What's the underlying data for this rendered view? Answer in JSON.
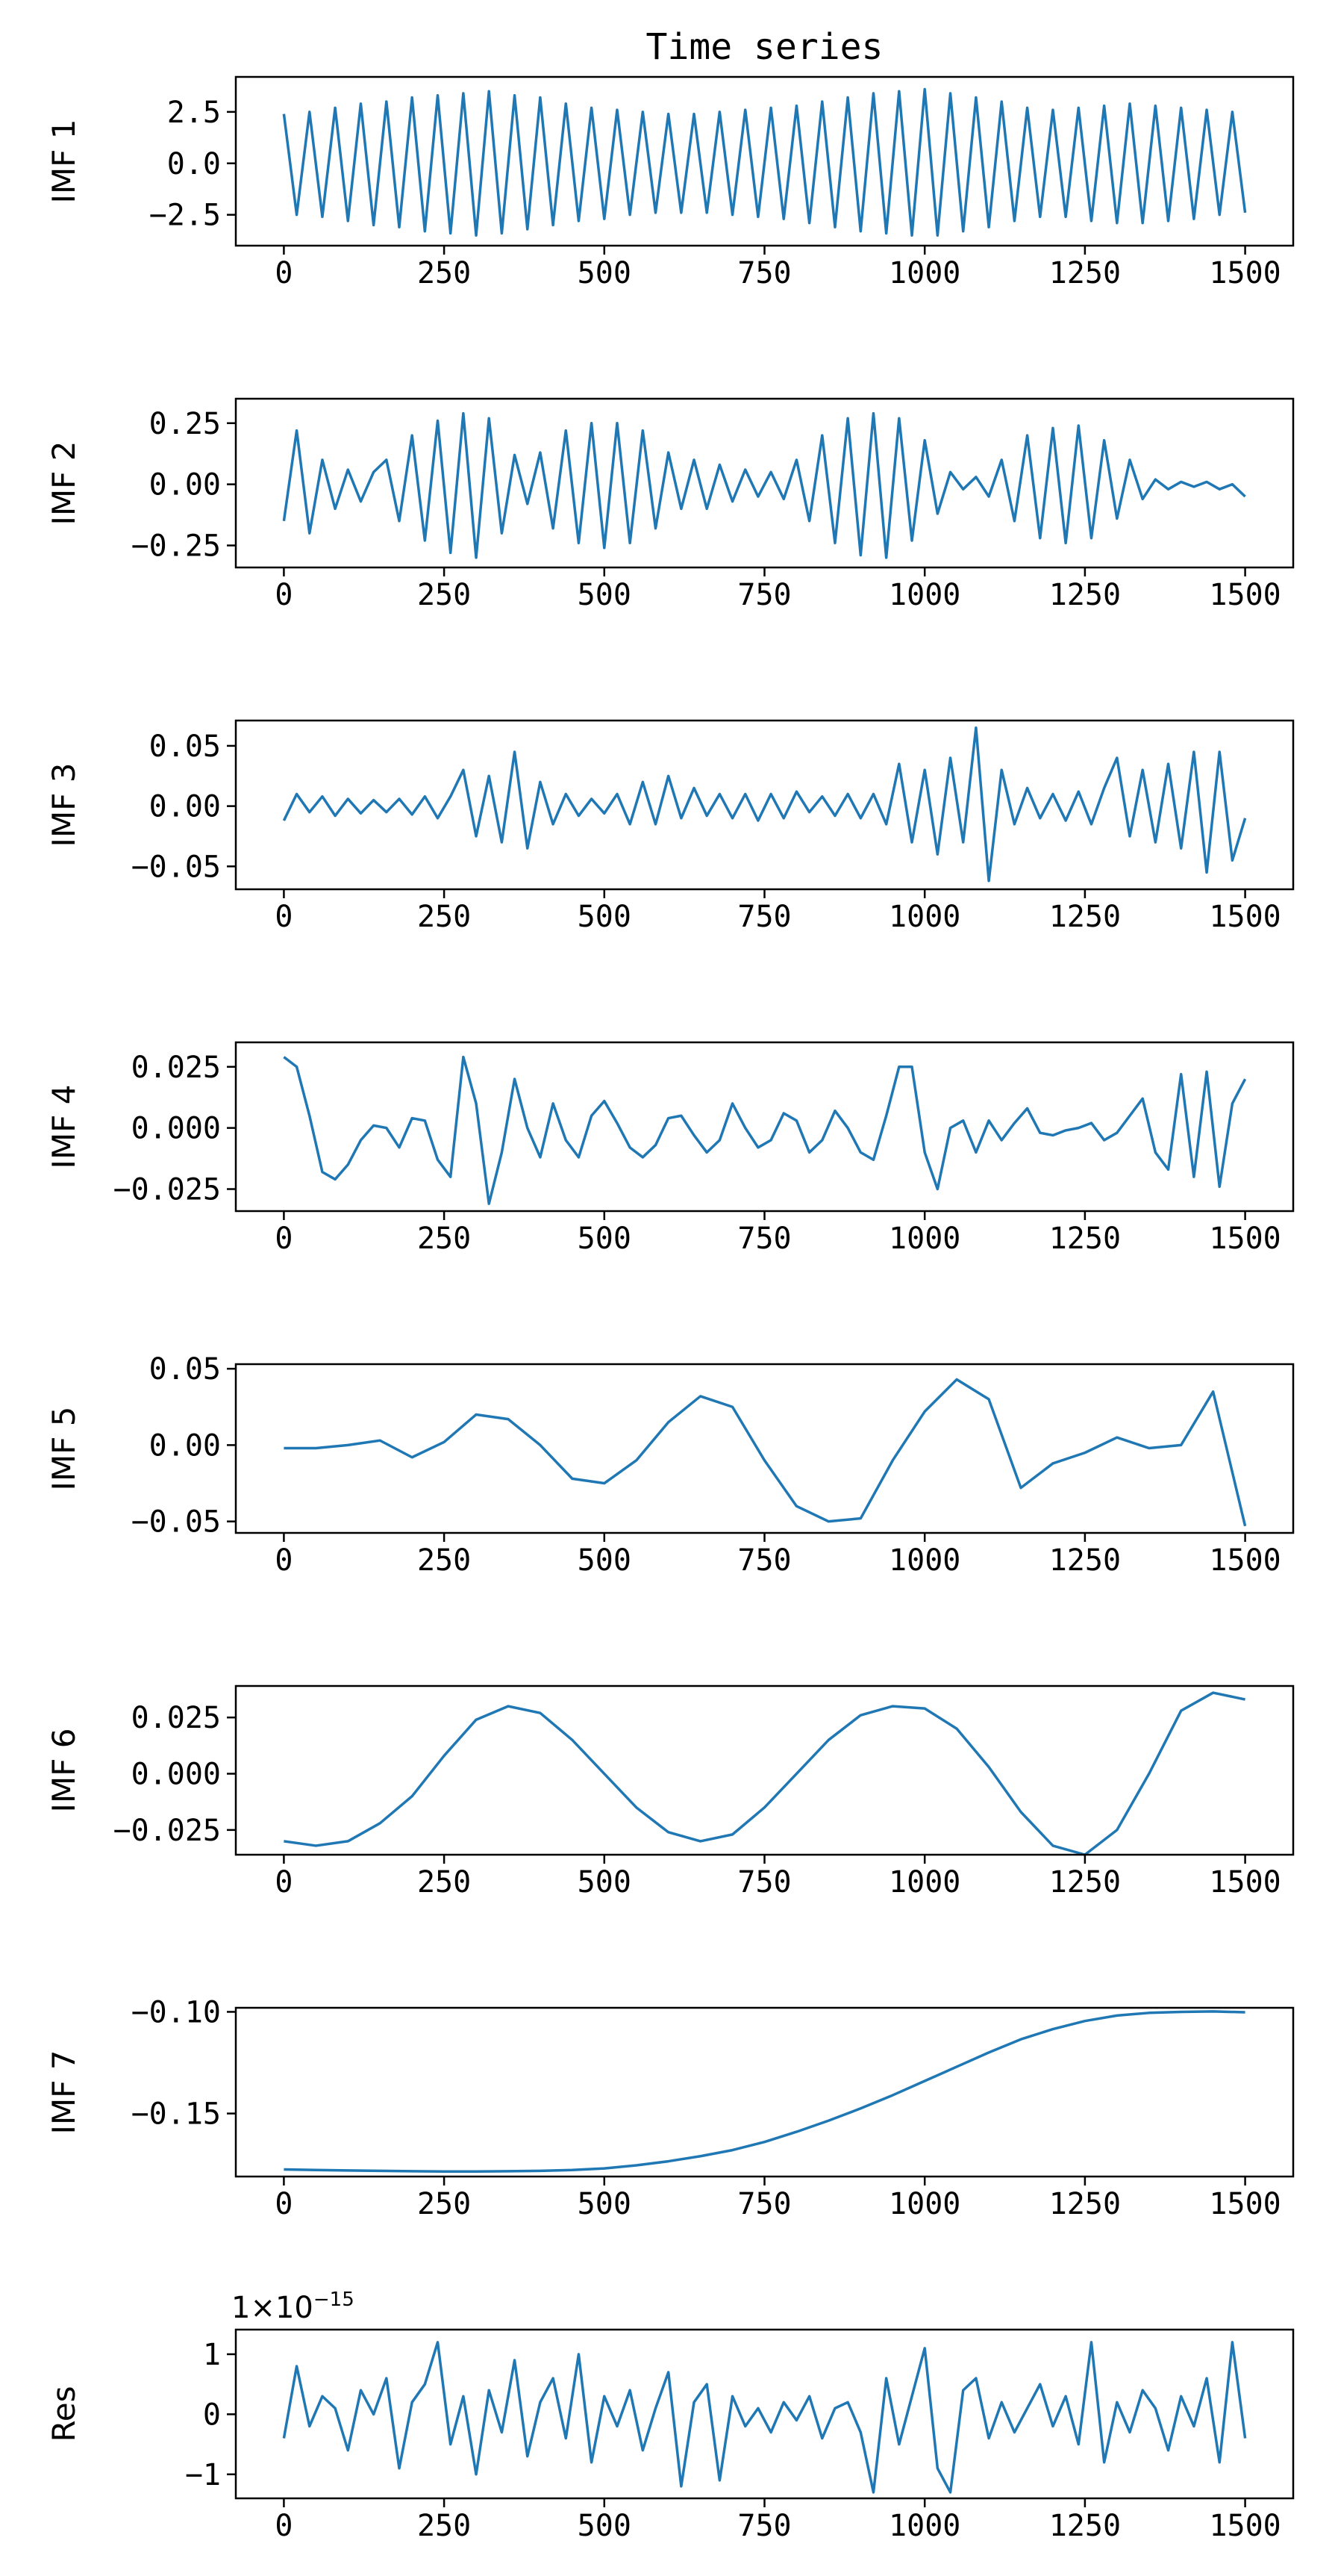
{
  "chart_data": [
    {
      "type": "line",
      "title": "Time series",
      "ylabel": "IMF 1",
      "color": "#1f77b4",
      "x": [
        0,
        20,
        40,
        60,
        80,
        100,
        120,
        140,
        160,
        180,
        200,
        220,
        240,
        260,
        280,
        300,
        320,
        340,
        360,
        380,
        400,
        420,
        440,
        460,
        480,
        500,
        520,
        540,
        560,
        580,
        600,
        620,
        640,
        660,
        680,
        700,
        720,
        740,
        760,
        780,
        800,
        820,
        840,
        860,
        880,
        900,
        920,
        940,
        960,
        980,
        1000,
        1020,
        1040,
        1060,
        1080,
        1100,
        1120,
        1140,
        1160,
        1180,
        1200,
        1220,
        1240,
        1260,
        1280,
        1300,
        1320,
        1340,
        1360,
        1380,
        1400,
        1420,
        1440,
        1460,
        1480,
        1500
      ],
      "values": [
        2.4,
        -2.5,
        2.5,
        -2.6,
        2.7,
        -2.8,
        2.9,
        -3.0,
        3.0,
        -3.1,
        3.2,
        -3.3,
        3.3,
        -3.4,
        3.4,
        -3.5,
        3.5,
        -3.4,
        3.3,
        -3.2,
        3.2,
        -3.0,
        2.9,
        -2.8,
        2.7,
        -2.7,
        2.6,
        -2.5,
        2.5,
        -2.4,
        2.4,
        -2.4,
        2.4,
        -2.4,
        2.5,
        -2.5,
        2.6,
        -2.6,
        2.7,
        -2.7,
        2.8,
        -2.9,
        3.0,
        -3.1,
        3.2,
        -3.3,
        3.4,
        -3.4,
        3.5,
        -3.5,
        3.6,
        -3.5,
        3.4,
        -3.3,
        3.2,
        -3.1,
        3.0,
        -2.8,
        2.7,
        -2.6,
        2.6,
        -2.6,
        2.7,
        -2.8,
        2.8,
        -2.9,
        2.9,
        -2.9,
        2.8,
        -2.8,
        2.7,
        -2.7,
        2.6,
        -2.5,
        2.5,
        -2.4
      ],
      "xlim": [
        -75,
        1575
      ],
      "xticks": [
        0,
        250,
        500,
        750,
        1000,
        1250,
        1500
      ],
      "ylim": [
        -4.0,
        4.2
      ],
      "yticks": [
        {
          "value": -2.5,
          "label": "−2.5"
        },
        {
          "value": 0,
          "label": "0.0"
        },
        2.5
      ]
    },
    {
      "type": "line",
      "ylabel": "IMF 2",
      "color": "#1f77b4",
      "x": [
        0,
        20,
        40,
        60,
        80,
        100,
        120,
        140,
        160,
        180,
        200,
        220,
        240,
        260,
        280,
        300,
        320,
        340,
        360,
        380,
        400,
        420,
        440,
        460,
        480,
        500,
        520,
        540,
        560,
        580,
        600,
        620,
        640,
        660,
        680,
        700,
        720,
        740,
        760,
        780,
        800,
        820,
        840,
        860,
        880,
        900,
        920,
        940,
        960,
        980,
        1000,
        1020,
        1040,
        1060,
        1080,
        1100,
        1120,
        1140,
        1160,
        1180,
        1200,
        1220,
        1240,
        1260,
        1280,
        1300,
        1320,
        1340,
        1360,
        1380,
        1400,
        1420,
        1440,
        1460,
        1480,
        1500
      ],
      "values": [
        -0.15,
        0.22,
        -0.2,
        0.1,
        -0.1,
        0.06,
        -0.07,
        0.05,
        0.1,
        -0.15,
        0.2,
        -0.23,
        0.26,
        -0.28,
        0.29,
        -0.3,
        0.27,
        -0.2,
        0.12,
        -0.08,
        0.13,
        -0.18,
        0.22,
        -0.24,
        0.25,
        -0.26,
        0.25,
        -0.24,
        0.22,
        -0.18,
        0.13,
        -0.1,
        0.1,
        -0.1,
        0.08,
        -0.07,
        0.06,
        -0.05,
        0.05,
        -0.06,
        0.1,
        -0.15,
        0.2,
        -0.24,
        0.27,
        -0.29,
        0.29,
        -0.3,
        0.27,
        -0.23,
        0.18,
        -0.12,
        0.05,
        -0.02,
        0.03,
        -0.05,
        0.1,
        -0.15,
        0.2,
        -0.22,
        0.23,
        -0.24,
        0.24,
        -0.22,
        0.18,
        -0.14,
        0.1,
        -0.06,
        0.02,
        -0.02,
        0.01,
        -0.01,
        0.01,
        -0.02,
        0.0,
        -0.05
      ],
      "xlim": [
        -75,
        1575
      ],
      "xticks": [
        0,
        250,
        500,
        750,
        1000,
        1250,
        1500
      ],
      "ylim": [
        -0.34,
        0.35
      ],
      "yticks": [
        {
          "value": -0.25,
          "label": "−0.25"
        },
        {
          "value": 0,
          "label": "0.00"
        },
        0.25
      ]
    },
    {
      "type": "line",
      "ylabel": "IMF 3",
      "color": "#1f77b4",
      "x": [
        0,
        20,
        40,
        60,
        80,
        100,
        120,
        140,
        160,
        180,
        200,
        220,
        240,
        260,
        280,
        300,
        320,
        340,
        360,
        380,
        400,
        420,
        440,
        460,
        480,
        500,
        520,
        540,
        560,
        580,
        600,
        620,
        640,
        660,
        680,
        700,
        720,
        740,
        760,
        780,
        800,
        820,
        840,
        860,
        880,
        900,
        920,
        940,
        960,
        980,
        1000,
        1020,
        1040,
        1060,
        1080,
        1100,
        1120,
        1140,
        1160,
        1180,
        1200,
        1220,
        1240,
        1260,
        1280,
        1300,
        1320,
        1340,
        1360,
        1380,
        1400,
        1420,
        1440,
        1460,
        1480,
        1500
      ],
      "values": [
        -0.012,
        0.01,
        -0.005,
        0.008,
        -0.008,
        0.006,
        -0.006,
        0.005,
        -0.005,
        0.006,
        -0.007,
        0.008,
        -0.01,
        0.008,
        0.03,
        -0.025,
        0.025,
        -0.03,
        0.045,
        -0.035,
        0.02,
        -0.015,
        0.01,
        -0.008,
        0.006,
        -0.006,
        0.01,
        -0.015,
        0.02,
        -0.015,
        0.025,
        -0.01,
        0.015,
        -0.008,
        0.01,
        -0.01,
        0.01,
        -0.012,
        0.01,
        -0.01,
        0.012,
        -0.005,
        0.008,
        -0.008,
        0.01,
        -0.01,
        0.01,
        -0.015,
        0.035,
        -0.03,
        0.03,
        -0.04,
        0.04,
        -0.03,
        0.065,
        -0.062,
        0.03,
        -0.015,
        0.015,
        -0.01,
        0.01,
        -0.012,
        0.012,
        -0.015,
        0.015,
        0.04,
        -0.025,
        0.03,
        -0.03,
        0.035,
        -0.035,
        0.045,
        -0.055,
        0.045,
        -0.045,
        -0.01
      ],
      "xlim": [
        -75,
        1575
      ],
      "xticks": [
        0,
        250,
        500,
        750,
        1000,
        1250,
        1500
      ],
      "ylim": [
        -0.069,
        0.071
      ],
      "yticks": [
        {
          "value": -0.05,
          "label": "−0.05"
        },
        {
          "value": 0,
          "label": "0.00"
        },
        0.05
      ]
    },
    {
      "type": "line",
      "ylabel": "IMF 4",
      "color": "#1f77b4",
      "x": [
        0,
        20,
        40,
        60,
        80,
        100,
        120,
        140,
        160,
        180,
        200,
        220,
        240,
        260,
        280,
        300,
        320,
        340,
        360,
        380,
        400,
        420,
        440,
        460,
        480,
        500,
        520,
        540,
        560,
        580,
        600,
        620,
        640,
        660,
        680,
        700,
        720,
        740,
        760,
        780,
        800,
        820,
        840,
        860,
        880,
        900,
        920,
        940,
        960,
        980,
        1000,
        1020,
        1040,
        1060,
        1080,
        1100,
        1120,
        1140,
        1160,
        1180,
        1200,
        1220,
        1240,
        1260,
        1280,
        1300,
        1320,
        1340,
        1360,
        1380,
        1400,
        1420,
        1440,
        1460,
        1480,
        1500
      ],
      "values": [
        0.029,
        0.025,
        0.005,
        -0.018,
        -0.021,
        -0.015,
        -0.005,
        0.001,
        0.0,
        -0.008,
        0.004,
        0.003,
        -0.013,
        -0.02,
        0.029,
        0.01,
        -0.031,
        -0.01,
        0.02,
        0.0,
        -0.012,
        0.01,
        -0.005,
        -0.012,
        0.005,
        0.011,
        0.002,
        -0.008,
        -0.012,
        -0.007,
        0.004,
        0.005,
        -0.003,
        -0.01,
        -0.005,
        0.01,
        0.0,
        -0.008,
        -0.005,
        0.006,
        0.003,
        -0.01,
        -0.005,
        0.007,
        0.0,
        -0.01,
        -0.013,
        0.005,
        0.025,
        0.025,
        -0.01,
        -0.025,
        0.0,
        0.003,
        -0.01,
        0.003,
        -0.005,
        0.002,
        0.008,
        -0.002,
        -0.003,
        -0.001,
        0.0,
        0.002,
        -0.005,
        -0.002,
        0.005,
        0.012,
        -0.01,
        -0.017,
        0.022,
        -0.02,
        0.023,
        -0.024,
        0.01,
        0.02
      ],
      "xlim": [
        -75,
        1575
      ],
      "xticks": [
        0,
        250,
        500,
        750,
        1000,
        1250,
        1500
      ],
      "ylim": [
        -0.034,
        0.035
      ],
      "yticks": [
        {
          "value": -0.025,
          "label": "−0.025"
        },
        {
          "value": 0,
          "label": "0.000"
        },
        0.025
      ]
    },
    {
      "type": "line",
      "ylabel": "IMF 5",
      "color": "#1f77b4",
      "x": [
        0,
        50,
        100,
        150,
        200,
        250,
        300,
        350,
        400,
        450,
        500,
        550,
        600,
        650,
        700,
        750,
        800,
        850,
        900,
        950,
        1000,
        1050,
        1100,
        1150,
        1200,
        1250,
        1300,
        1350,
        1400,
        1450,
        1500
      ],
      "values": [
        -0.002,
        -0.002,
        0.0,
        0.003,
        -0.008,
        0.002,
        0.02,
        0.017,
        0.0,
        -0.022,
        -0.025,
        -0.01,
        0.015,
        0.032,
        0.025,
        -0.01,
        -0.04,
        -0.05,
        -0.048,
        -0.01,
        0.022,
        0.043,
        0.03,
        -0.028,
        -0.012,
        -0.005,
        0.005,
        -0.002,
        0.0,
        0.035,
        -0.053
      ],
      "xlim": [
        -75,
        1575
      ],
      "xticks": [
        0,
        250,
        500,
        750,
        1000,
        1250,
        1500
      ],
      "ylim": [
        -0.0575,
        0.053
      ],
      "yticks": [
        {
          "value": -0.05,
          "label": "−0.05"
        },
        {
          "value": 0,
          "label": "0.00"
        },
        0.05
      ]
    },
    {
      "type": "line",
      "ylabel": "IMF 6",
      "color": "#1f77b4",
      "x": [
        0,
        50,
        100,
        150,
        200,
        250,
        300,
        350,
        400,
        450,
        500,
        550,
        600,
        650,
        700,
        750,
        800,
        850,
        900,
        950,
        1000,
        1050,
        1100,
        1150,
        1200,
        1250,
        1300,
        1350,
        1400,
        1450,
        1500
      ],
      "values": [
        -0.03,
        -0.032,
        -0.03,
        -0.022,
        -0.01,
        0.008,
        0.024,
        0.03,
        0.027,
        0.015,
        0.0,
        -0.015,
        -0.026,
        -0.03,
        -0.027,
        -0.015,
        0.0,
        0.015,
        0.026,
        0.03,
        0.029,
        0.02,
        0.003,
        -0.017,
        -0.032,
        -0.036,
        -0.025,
        0.0,
        0.028,
        0.036,
        0.033
      ],
      "xlim": [
        -75,
        1575
      ],
      "xticks": [
        0,
        250,
        500,
        750,
        1000,
        1250,
        1500
      ],
      "ylim": [
        -0.036,
        0.039
      ],
      "yticks": [
        {
          "value": -0.025,
          "label": "−0.025"
        },
        {
          "value": 0,
          "label": "0.000"
        },
        0.025
      ]
    },
    {
      "type": "line",
      "ylabel": "IMF 7",
      "color": "#1f77b4",
      "x": [
        0,
        50,
        100,
        150,
        200,
        250,
        300,
        350,
        400,
        450,
        500,
        550,
        600,
        650,
        700,
        750,
        800,
        850,
        900,
        950,
        1000,
        1050,
        1100,
        1150,
        1200,
        1250,
        1300,
        1350,
        1400,
        1450,
        1500
      ],
      "values": [
        -0.1775,
        -0.1778,
        -0.178,
        -0.1782,
        -0.1784,
        -0.1785,
        -0.1785,
        -0.1784,
        -0.1782,
        -0.1778,
        -0.177,
        -0.1755,
        -0.1735,
        -0.171,
        -0.168,
        -0.164,
        -0.159,
        -0.1535,
        -0.1475,
        -0.141,
        -0.134,
        -0.127,
        -0.12,
        -0.1135,
        -0.1085,
        -0.1045,
        -0.1018,
        -0.1005,
        -0.1,
        -0.0998,
        -0.1002
      ],
      "xlim": [
        -75,
        1575
      ],
      "xticks": [
        0,
        250,
        500,
        750,
        1000,
        1250,
        1500
      ],
      "ylim": [
        -0.181,
        -0.098
      ],
      "yticks": [
        {
          "value": -0.15,
          "label": "−0.15"
        },
        {
          "value": -0.1,
          "label": "−0.10"
        }
      ]
    },
    {
      "type": "line",
      "ylabel": "Res",
      "offset_text_base": "1×10",
      "offset_text_exponent": "−15",
      "color": "#1f77b4",
      "x": [
        0,
        20,
        40,
        60,
        80,
        100,
        120,
        140,
        160,
        180,
        200,
        220,
        240,
        260,
        280,
        300,
        320,
        340,
        360,
        380,
        400,
        420,
        440,
        460,
        480,
        500,
        520,
        540,
        560,
        580,
        600,
        620,
        640,
        660,
        680,
        700,
        720,
        740,
        760,
        780,
        800,
        820,
        840,
        860,
        880,
        900,
        920,
        940,
        960,
        980,
        1000,
        1020,
        1040,
        1060,
        1080,
        1100,
        1120,
        1140,
        1160,
        1180,
        1200,
        1220,
        1240,
        1260,
        1280,
        1300,
        1320,
        1340,
        1360,
        1380,
        1400,
        1420,
        1440,
        1460,
        1480,
        1500
      ],
      "values": [
        -0.4,
        0.8,
        -0.2,
        0.3,
        0.1,
        -0.6,
        0.4,
        0.0,
        0.6,
        -0.9,
        0.2,
        0.5,
        1.2,
        -0.5,
        0.3,
        -1.0,
        0.4,
        -0.3,
        0.9,
        -0.7,
        0.2,
        0.6,
        -0.4,
        1.0,
        -0.8,
        0.3,
        -0.2,
        0.4,
        -0.6,
        0.1,
        0.7,
        -1.2,
        0.2,
        0.5,
        -1.1,
        0.3,
        -0.2,
        0.1,
        -0.3,
        0.2,
        -0.1,
        0.3,
        -0.4,
        0.1,
        0.2,
        -0.3,
        -1.3,
        0.6,
        -0.5,
        0.3,
        1.1,
        -0.9,
        -1.3,
        0.4,
        0.6,
        -0.4,
        0.2,
        -0.3,
        0.1,
        0.5,
        -0.2,
        0.3,
        -0.5,
        1.2,
        -0.8,
        0.2,
        -0.3,
        0.4,
        0.1,
        -0.6,
        0.3,
        -0.2,
        0.6,
        -0.8,
        1.2,
        -0.4
      ],
      "xlim": [
        -75,
        1575
      ],
      "xticks": [
        0,
        250,
        500,
        750,
        1000,
        1250,
        1500
      ],
      "ylim": [
        -1.4,
        1.41
      ],
      "yticks": [
        {
          "value": -1,
          "label": "−1"
        },
        0,
        1
      ]
    }
  ]
}
